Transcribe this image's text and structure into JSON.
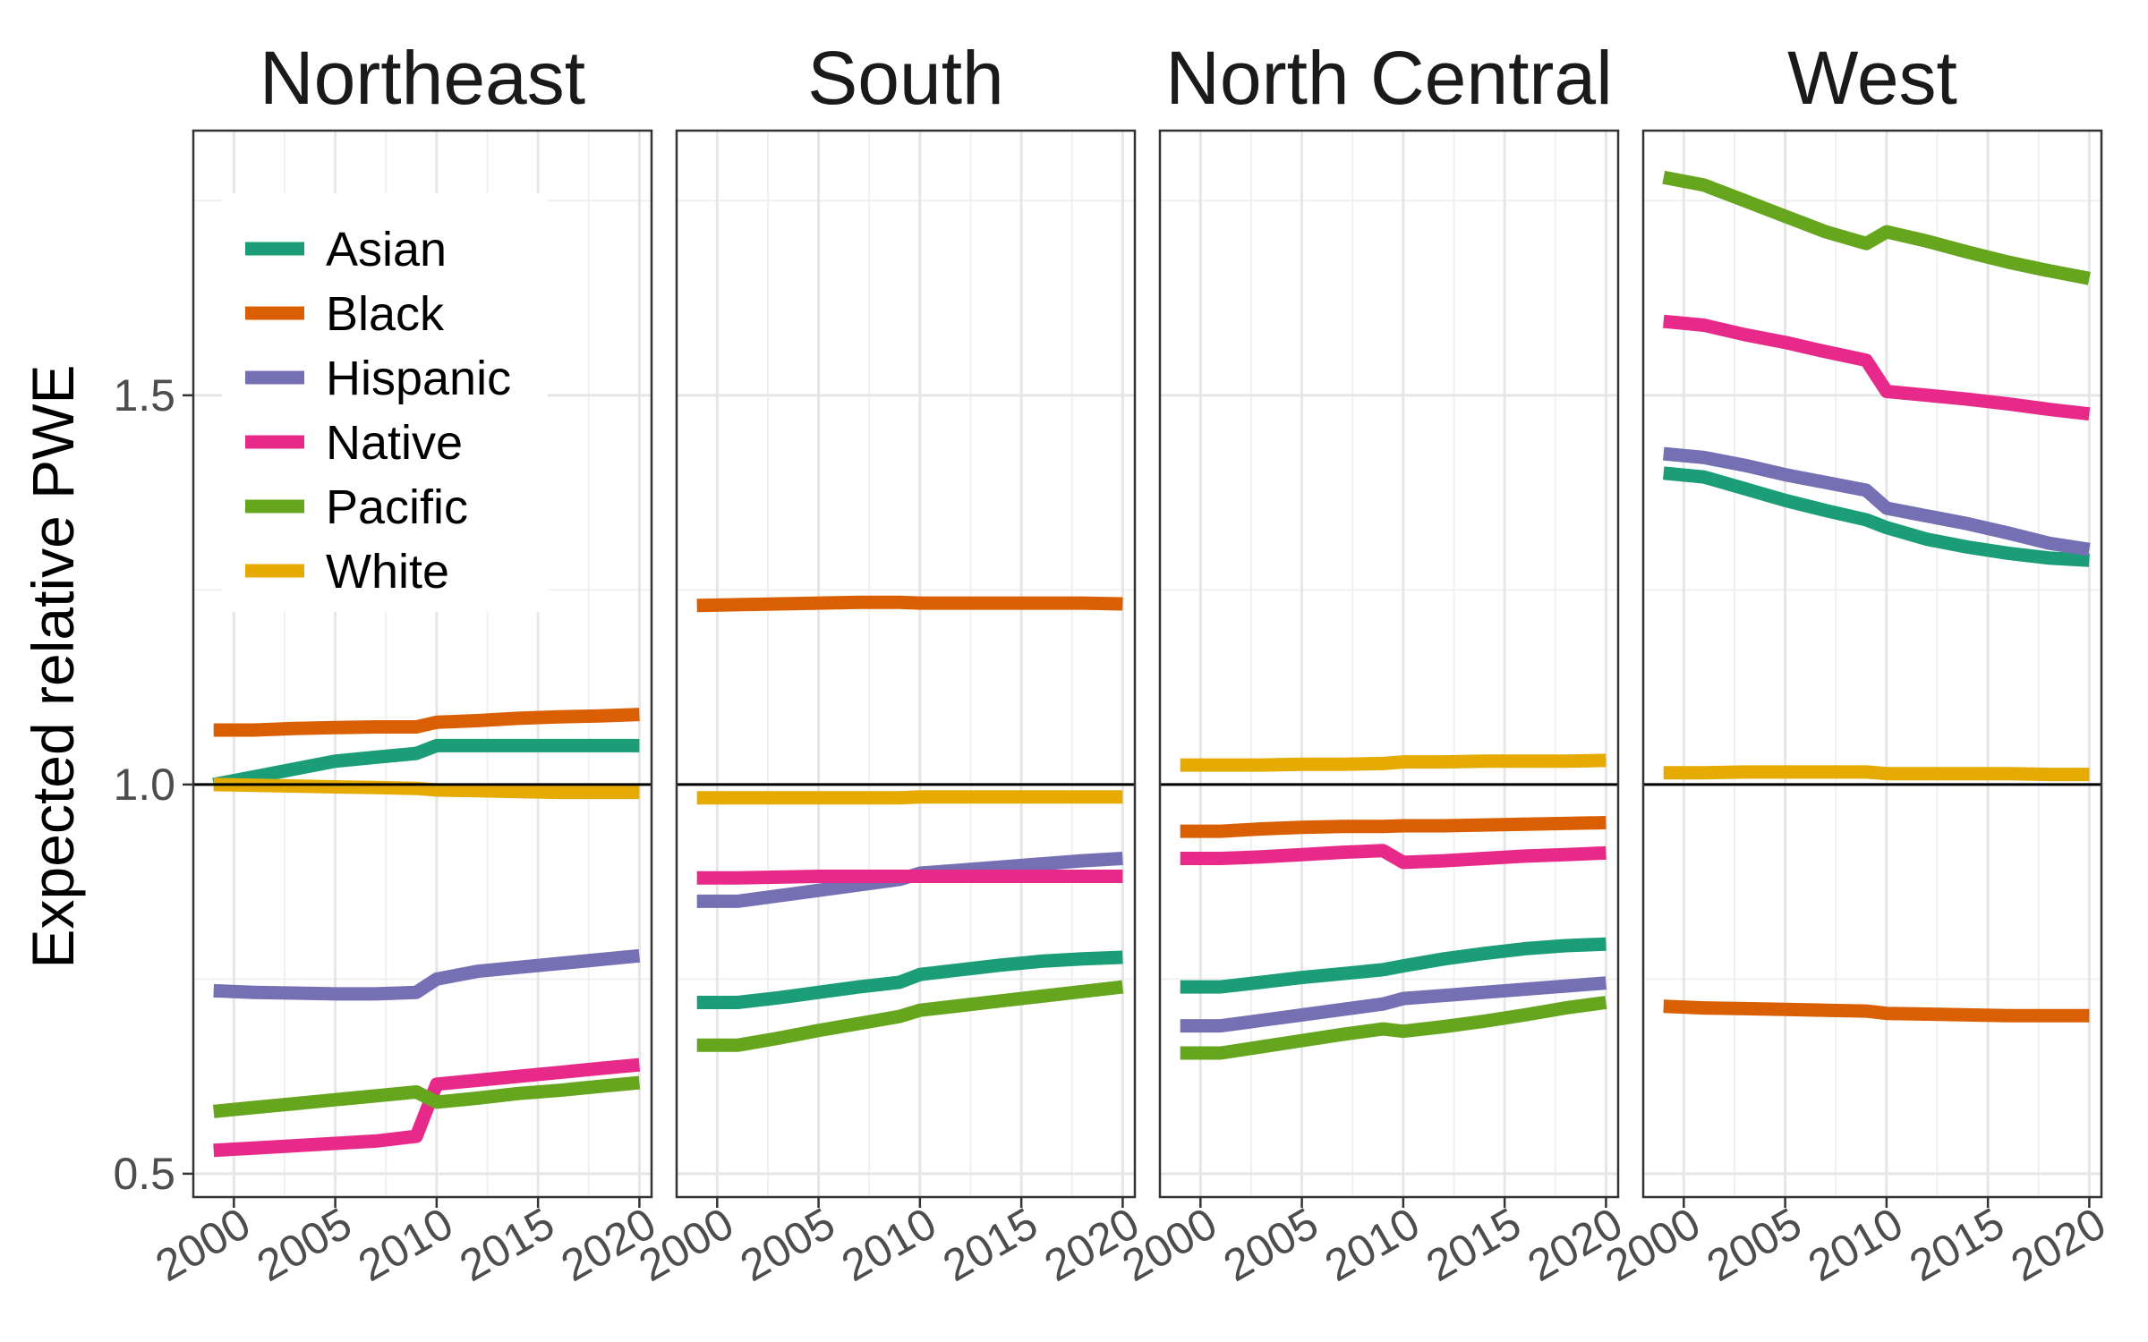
{
  "chart_data": {
    "type": "line",
    "ylabel": "Expected relative PWE",
    "xlabel": "",
    "xlim": [
      1998,
      2020.6
    ],
    "ylim": [
      0.47,
      1.84
    ],
    "x_ticks": [
      2000,
      2005,
      2010,
      2015,
      2020
    ],
    "y_ticks": [
      0.5,
      1.0,
      1.5
    ],
    "y_tick_labels": [
      "0.5",
      "1.0",
      "1.5"
    ],
    "reference_line": 1.0,
    "grid": true,
    "legend_position": "top-left, inside first panel",
    "x": [
      1999,
      2001,
      2003,
      2005,
      2007,
      2009,
      2010,
      2012,
      2014,
      2016,
      2018,
      2020
    ],
    "colors": {
      "Asian": "#1b9e77",
      "Black": "#d95f02",
      "Hispanic": "#7570b3",
      "Native": "#e7298a",
      "Pacific": "#66a61e",
      "White": "#e6ab02"
    },
    "legend": [
      "Asian",
      "Black",
      "Hispanic",
      "Native",
      "Pacific",
      "White"
    ],
    "panels": [
      {
        "title": "Northeast",
        "series": [
          {
            "name": "Asian",
            "values": [
              1.0,
              1.01,
              1.02,
              1.03,
              1.035,
              1.04,
              1.05,
              1.05,
              1.05,
              1.05,
              1.05,
              1.05
            ]
          },
          {
            "name": "Black",
            "values": [
              1.07,
              1.07,
              1.072,
              1.073,
              1.074,
              1.074,
              1.08,
              1.082,
              1.085,
              1.087,
              1.088,
              1.09
            ]
          },
          {
            "name": "Hispanic",
            "values": [
              0.735,
              0.733,
              0.732,
              0.731,
              0.731,
              0.733,
              0.75,
              0.76,
              0.765,
              0.77,
              0.775,
              0.78
            ]
          },
          {
            "name": "Native",
            "values": [
              0.53,
              0.533,
              0.536,
              0.539,
              0.542,
              0.548,
              0.615,
              0.62,
              0.625,
              0.63,
              0.635,
              0.64
            ]
          },
          {
            "name": "Pacific",
            "values": [
              0.58,
              0.585,
              0.59,
              0.595,
              0.6,
              0.605,
              0.592,
              0.597,
              0.603,
              0.607,
              0.612,
              0.617
            ]
          },
          {
            "name": "White",
            "values": [
              1.0,
              0.999,
              0.998,
              0.997,
              0.996,
              0.995,
              0.993,
              0.992,
              0.991,
              0.99,
              0.99,
              0.99
            ]
          }
        ]
      },
      {
        "title": "South",
        "series": [
          {
            "name": "Asian",
            "values": [
              0.72,
              0.72,
              0.726,
              0.733,
              0.74,
              0.746,
              0.756,
              0.762,
              0.768,
              0.773,
              0.776,
              0.778
            ]
          },
          {
            "name": "Black",
            "values": [
              1.23,
              1.231,
              1.232,
              1.233,
              1.234,
              1.234,
              1.233,
              1.233,
              1.233,
              1.233,
              1.233,
              1.232
            ]
          },
          {
            "name": "Hispanic",
            "values": [
              0.85,
              0.85,
              0.857,
              0.864,
              0.871,
              0.878,
              0.886,
              0.89,
              0.894,
              0.898,
              0.902,
              0.905
            ]
          },
          {
            "name": "Native",
            "values": [
              0.88,
              0.88,
              0.881,
              0.882,
              0.882,
              0.882,
              0.882,
              0.882,
              0.882,
              0.882,
              0.882,
              0.882
            ]
          },
          {
            "name": "Pacific",
            "values": [
              0.665,
              0.665,
              0.674,
              0.684,
              0.693,
              0.702,
              0.71,
              0.716,
              0.722,
              0.728,
              0.734,
              0.74
            ]
          },
          {
            "name": "White",
            "values": [
              0.983,
              0.983,
              0.983,
              0.983,
              0.983,
              0.983,
              0.984,
              0.984,
              0.984,
              0.984,
              0.984,
              0.984
            ]
          }
        ]
      },
      {
        "title": "North Central",
        "series": [
          {
            "name": "Asian",
            "values": [
              0.74,
              0.74,
              0.746,
              0.752,
              0.757,
              0.762,
              0.767,
              0.776,
              0.783,
              0.789,
              0.793,
              0.795
            ]
          },
          {
            "name": "Black",
            "values": [
              0.94,
              0.94,
              0.943,
              0.945,
              0.946,
              0.946,
              0.947,
              0.947,
              0.948,
              0.949,
              0.95,
              0.951
            ]
          },
          {
            "name": "Hispanic",
            "values": [
              0.69,
              0.69,
              0.697,
              0.704,
              0.711,
              0.718,
              0.725,
              0.729,
              0.733,
              0.737,
              0.741,
              0.745
            ]
          },
          {
            "name": "Native",
            "values": [
              0.905,
              0.905,
              0.907,
              0.91,
              0.913,
              0.915,
              0.9,
              0.902,
              0.905,
              0.908,
              0.91,
              0.912
            ]
          },
          {
            "name": "Pacific",
            "values": [
              0.655,
              0.655,
              0.663,
              0.671,
              0.679,
              0.686,
              0.683,
              0.689,
              0.696,
              0.704,
              0.713,
              0.72
            ]
          },
          {
            "name": "White",
            "values": [
              1.025,
              1.025,
              1.025,
              1.026,
              1.026,
              1.027,
              1.029,
              1.029,
              1.03,
              1.03,
              1.03,
              1.031
            ]
          }
        ]
      },
      {
        "title": "West",
        "series": [
          {
            "name": "Asian",
            "values": [
              1.4,
              1.395,
              1.38,
              1.365,
              1.352,
              1.34,
              1.33,
              1.315,
              1.305,
              1.297,
              1.291,
              1.288
            ]
          },
          {
            "name": "Black",
            "values": [
              0.715,
              0.713,
              0.712,
              0.711,
              0.71,
              0.709,
              0.706,
              0.705,
              0.704,
              0.703,
              0.703,
              0.703
            ]
          },
          {
            "name": "Hispanic",
            "values": [
              1.425,
              1.42,
              1.41,
              1.398,
              1.388,
              1.378,
              1.355,
              1.345,
              1.335,
              1.323,
              1.31,
              1.302
            ]
          },
          {
            "name": "Native",
            "values": [
              1.595,
              1.59,
              1.578,
              1.568,
              1.556,
              1.545,
              1.505,
              1.5,
              1.495,
              1.489,
              1.482,
              1.476
            ]
          },
          {
            "name": "Pacific",
            "values": [
              1.78,
              1.77,
              1.75,
              1.73,
              1.71,
              1.695,
              1.71,
              1.698,
              1.684,
              1.671,
              1.66,
              1.65
            ]
          },
          {
            "name": "White",
            "values": [
              1.015,
              1.015,
              1.016,
              1.016,
              1.016,
              1.016,
              1.014,
              1.014,
              1.014,
              1.014,
              1.013,
              1.013
            ]
          }
        ]
      }
    ]
  }
}
